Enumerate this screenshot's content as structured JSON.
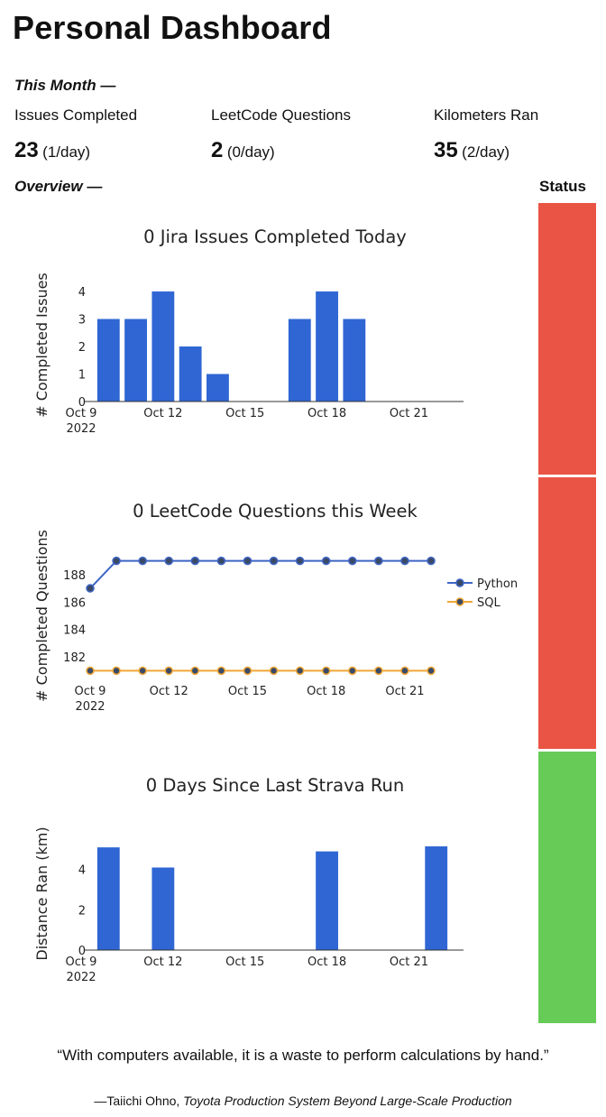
{
  "title": "Personal Dashboard",
  "this_month": {
    "label": "This Month —",
    "stats": [
      {
        "label": "Issues Completed",
        "value": "23",
        "rate": "(1/day)"
      },
      {
        "label": "LeetCode Questions",
        "value": "2",
        "rate": "(0/day)"
      },
      {
        "label": "Kilometers Ran",
        "value": "35",
        "rate": "(2/day)"
      }
    ]
  },
  "overview": {
    "label": "Overview —"
  },
  "status": {
    "heading": "Status",
    "blocks": [
      {
        "name": "jira",
        "color": "#ea5444"
      },
      {
        "name": "leetcode",
        "color": "#ea5444"
      },
      {
        "name": "strava",
        "color": "#67cb58"
      }
    ]
  },
  "quote": {
    "text": "“With computers available, it is a waste to perform calculations by hand.”",
    "author": "—Taiichi Ohno, ",
    "source": "Toyota Production System Beyond Large-Scale Production"
  },
  "chart_data": [
    {
      "type": "bar",
      "title": "0 Jira Issues Completed Today",
      "xlabel": "",
      "ylabel": "# Completed Issues",
      "x": [
        "2022-10-10",
        "2022-10-11",
        "2022-10-12",
        "2022-10-13",
        "2022-10-14",
        "2022-10-15",
        "2022-10-16",
        "2022-10-17",
        "2022-10-18",
        "2022-10-19",
        "2022-10-20",
        "2022-10-21",
        "2022-10-22"
      ],
      "values": [
        3,
        3,
        4,
        2,
        1,
        0,
        0,
        3,
        4,
        3,
        0,
        0,
        0
      ],
      "xlim": [
        "2022-10-09",
        "2022-10-23"
      ],
      "ylim": [
        0,
        4.1
      ],
      "x_ticks": [
        "Oct 9",
        "Oct 12",
        "Oct 15",
        "Oct 18",
        "Oct 21"
      ],
      "x_tick_sub": "2022",
      "y_ticks": [
        0,
        1,
        2,
        3,
        4
      ],
      "color": "#2f66d4",
      "grid": false
    },
    {
      "type": "line",
      "title": "0 LeetCode Questions this Week",
      "xlabel": "",
      "ylabel": "# Completed Questions",
      "x": [
        "2022-10-09",
        "2022-10-10",
        "2022-10-11",
        "2022-10-12",
        "2022-10-13",
        "2022-10-14",
        "2022-10-15",
        "2022-10-16",
        "2022-10-17",
        "2022-10-18",
        "2022-10-19",
        "2022-10-20",
        "2022-10-21",
        "2022-10-22"
      ],
      "series": [
        {
          "name": "Python",
          "color": "#3e66c6",
          "values": [
            187,
            189,
            189,
            189,
            189,
            189,
            189,
            189,
            189,
            189,
            189,
            189,
            189,
            189
          ]
        },
        {
          "name": "SQL",
          "color": "#f1a737",
          "values": [
            181,
            181,
            181,
            181,
            181,
            181,
            181,
            181,
            181,
            181,
            181,
            181,
            181,
            181
          ]
        }
      ],
      "xlim": [
        "2022-10-09",
        "2022-10-22"
      ],
      "ylim": [
        180.5,
        189.5
      ],
      "x_ticks": [
        "Oct 9",
        "Oct 12",
        "Oct 15",
        "Oct 18",
        "Oct 21"
      ],
      "x_tick_sub": "2022",
      "y_ticks": [
        182,
        184,
        186,
        188
      ],
      "legend": "right",
      "grid": false
    },
    {
      "type": "bar",
      "title": "0 Days Since Last Strava Run",
      "xlabel": "",
      "ylabel": "Distance Ran (km)",
      "x": [
        "2022-10-10",
        "2022-10-12",
        "2022-10-18",
        "2022-10-22"
      ],
      "values": [
        5.1,
        4.1,
        4.9,
        5.15
      ],
      "xlim": [
        "2022-10-09",
        "2022-10-23"
      ],
      "ylim": [
        0,
        5.6
      ],
      "x_ticks": [
        "Oct 9",
        "Oct 12",
        "Oct 15",
        "Oct 18",
        "Oct 21"
      ],
      "x_tick_sub": "2022",
      "y_ticks": [
        0,
        2,
        4
      ],
      "color": "#2f66d4",
      "grid": false
    }
  ]
}
